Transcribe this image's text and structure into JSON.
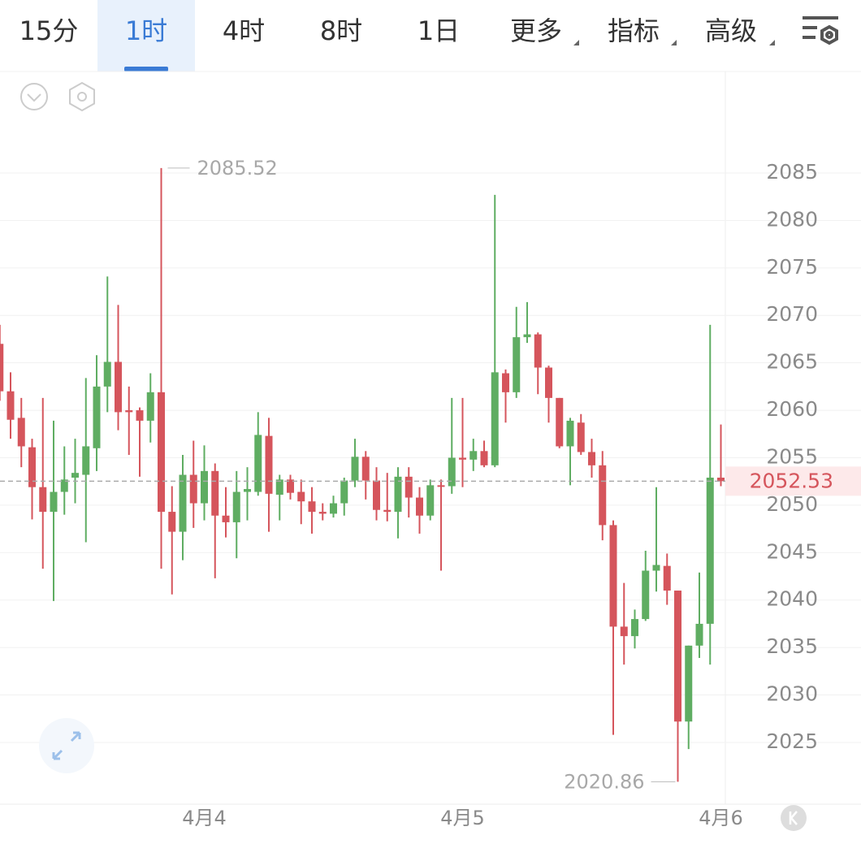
{
  "tabs": [
    "15分",
    "1时",
    "4时",
    "8时",
    "1日",
    "更多",
    "指标",
    "高级"
  ],
  "chart_data": {
    "type": "candlestick",
    "categories": [
      null,
      null,
      null,
      null,
      null,
      null,
      null,
      null,
      null,
      null,
      null,
      null,
      null,
      null,
      null,
      null,
      null,
      null,
      null,
      "4月4",
      null,
      null,
      null,
      null,
      null,
      null,
      null,
      null,
      null,
      null,
      null,
      null,
      null,
      null,
      null,
      null,
      null,
      null,
      null,
      null,
      null,
      null,
      null,
      "4月5",
      null,
      null,
      null,
      null,
      null,
      null,
      null,
      null,
      null,
      null,
      null,
      null,
      null,
      null,
      null,
      null,
      null,
      null,
      null,
      null,
      null,
      null,
      null,
      "4月6"
    ],
    "open": [
      2067,
      2062,
      2059.2,
      2056.1,
      2051.9,
      2049.3,
      2051.4,
      2052.9,
      2053.2,
      2056,
      2062.5,
      2065.1,
      2060,
      2060,
      2058.9,
      2061.9,
      2049.3,
      2047.2,
      2053.2,
      2050.2,
      2053.6,
      2048.9,
      2048.2,
      2051.4,
      2051.4,
      2057.3,
      2051.1,
      2052.7,
      2051.4,
      2050.4,
      2049.3,
      2049.1,
      2050.2,
      2052.6,
      2055.1,
      2052.6,
      2049.5,
      2049.3,
      2053,
      2050.8,
      2048.9,
      2052.1,
      2052,
      2055,
      2054.8,
      2055.7,
      2054.2,
      2063.9,
      2061.9,
      2067.7,
      2068,
      2064.5,
      2061.3,
      2056.2,
      2058.7,
      2055.6,
      2054.2,
      2047.9,
      2037.2,
      2036.2,
      2038,
      2043.1,
      2043.6,
      2041,
      2027.2,
      2035.2,
      2037.5,
      2052.9
    ],
    "high": [
      2069,
      2064,
      2061.3,
      2057,
      2061.3,
      2058.9,
      2056.2,
      2057,
      2063.4,
      2065.8,
      2074.1,
      2071.1,
      2062.5,
      2060.3,
      2063.9,
      2085.52,
      2052,
      2055.3,
      2056.8,
      2056.3,
      2054.4,
      2051.9,
      2053.6,
      2054,
      2059.8,
      2059.2,
      2053.2,
      2053.2,
      2052.7,
      2051.9,
      2050.2,
      2051,
      2052.9,
      2057,
      2055.7,
      2054,
      2053.4,
      2054,
      2054,
      2051.9,
      2052.7,
      2052.7,
      2061.3,
      2061.3,
      2057,
      2056.8,
      2082.7,
      2064.3,
      2070.9,
      2071.4,
      2068.2,
      2064.7,
      2061.3,
      2059.2,
      2059.6,
      2057,
      2055.7,
      2048.4,
      2041.8,
      2039,
      2045.2,
      2051.9,
      2044.9,
      2041,
      2035.2,
      2042.9,
      2069,
      2058.5
    ],
    "low": [
      2061,
      2057,
      2054,
      2048.5,
      2043.3,
      2039.9,
      2049,
      2050.2,
      2046.1,
      2053.6,
      2059.8,
      2057.9,
      2055.3,
      2053,
      2056.6,
      2043.3,
      2040.6,
      2044.2,
      2047.6,
      2048.4,
      2042.3,
      2046.6,
      2044.4,
      2048.4,
      2051,
      2047.2,
      2048.4,
      2050.6,
      2048,
      2047,
      2048.4,
      2048.7,
      2048.9,
      2051.9,
      2050.6,
      2048.4,
      2048.3,
      2046.5,
      2048.7,
      2047,
      2048.4,
      2043.1,
      2051.2,
      2051.9,
      2053.6,
      2054,
      2054,
      2058.7,
      2061.3,
      2067.1,
      2061.7,
      2058.7,
      2056,
      2052.1,
      2055.3,
      2052.9,
      2046.3,
      2025.8,
      2033.2,
      2034.9,
      2037.8,
      2040.9,
      2039.5,
      2020.86,
      2024.3,
      2033.9,
      2033.2,
      2052
    ],
    "close": [
      2062,
      2059,
      2056.2,
      2051.9,
      2049.3,
      2051.4,
      2052.7,
      2053.4,
      2056.2,
      2062.5,
      2065.1,
      2059.8,
      2059.8,
      2058.9,
      2061.9,
      2049.3,
      2047.2,
      2053.2,
      2050.2,
      2053.6,
      2048.9,
      2048.2,
      2051.4,
      2051.7,
      2057.4,
      2051.2,
      2052.7,
      2051.3,
      2050.4,
      2049.3,
      2049.1,
      2050.2,
      2052.6,
      2055.1,
      2052.6,
      2049.5,
      2049.3,
      2053,
      2050.8,
      2048.9,
      2052.1,
      2052,
      2055,
      2054.8,
      2055.7,
      2054.2,
      2064,
      2061.9,
      2067.7,
      2068,
      2064.5,
      2061.3,
      2056.2,
      2058.9,
      2055.6,
      2054.2,
      2047.9,
      2037.2,
      2036.2,
      2038,
      2043.1,
      2043.7,
      2041,
      2027.2,
      2035.2,
      2037.5,
      2052.9,
      2052.53
    ],
    "up_color": "#5fad62",
    "down_color": "#d5555c",
    "ylim": [
      2018.49,
      2095.7
    ],
    "yticks": [
      2025,
      2030,
      2035,
      2040,
      2045,
      2050,
      2055,
      2060,
      2065,
      2070,
      2075,
      2080,
      2085
    ],
    "grid": true
  }
}
